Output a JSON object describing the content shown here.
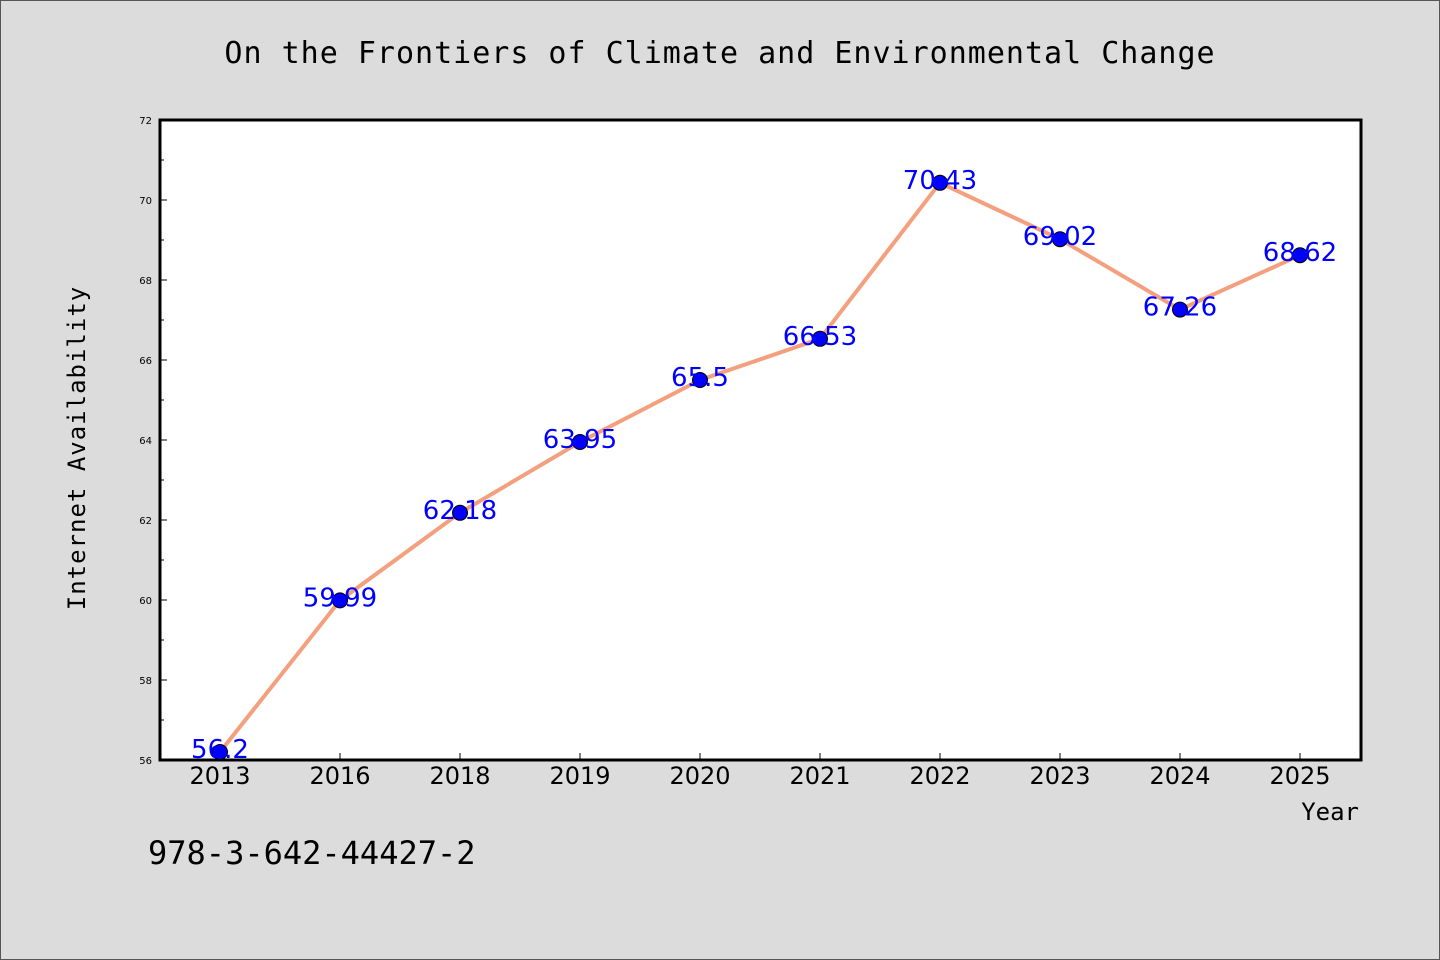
{
  "chart_data": {
    "type": "line",
    "title": "On the Frontiers of Climate and Environmental Change",
    "xlabel": "Year",
    "ylabel": "Internet Availability",
    "categories": [
      "2013",
      "2016",
      "2018",
      "2019",
      "2020",
      "2021",
      "2022",
      "2023",
      "2024",
      "2025"
    ],
    "values": [
      56.2,
      59.99,
      62.18,
      63.95,
      65.5,
      66.53,
      70.43,
      69.02,
      67.26,
      68.62
    ],
    "data_labels": [
      "56.2",
      "59.99",
      "62.18",
      "63.95",
      "65.5",
      "66.53",
      "70.43",
      "69.02",
      "67.26",
      "68.62"
    ],
    "ylim": [
      56,
      72
    ],
    "yticks": [
      56,
      58,
      60,
      62,
      64,
      66,
      68,
      70,
      72
    ],
    "grid": false,
    "line_color": "#f4a07e",
    "marker_color": "#0000ff",
    "label_color": "#0000ff"
  },
  "annotation": "978-3-642-44427-2"
}
